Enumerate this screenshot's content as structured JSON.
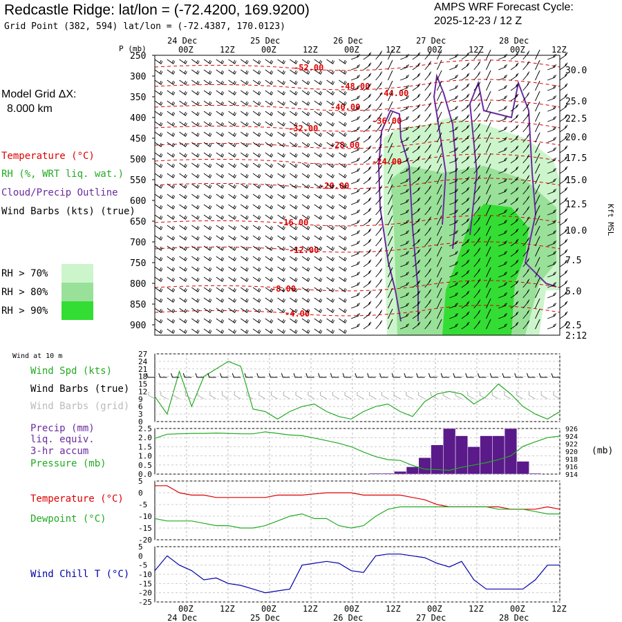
{
  "header": {
    "title": "Redcastle Ridge:  lat/lon = (-72.4200, 169.9200)",
    "subtitle": "Grid Point (382, 594) lat/lon = (-72.4387, 170.0123)",
    "cycle_line1": "AMPS WRF Forecast Cycle:",
    "cycle_line2": "2025-12-23 / 12  Z"
  },
  "left_panel": {
    "grid_label": "Model Grid ΔX:",
    "grid_value": "8.000 km",
    "legend_temperature": "Temperature (°C)",
    "legend_rh": "RH (%, WRT liq. wat.)",
    "legend_cloud": "Cloud/Precip Outline",
    "legend_barbs": "Wind Barbs (kts) (true)",
    "rh70": "RH > 70%",
    "rh80": "RH > 80%",
    "rh90": "RH > 90%",
    "wind10m": "Wind at 10 m",
    "wind_spd": "Wind Spd (kts)",
    "barbs_true": "Wind Barbs (true)",
    "barbs_grid": "Wind Barbs (grid)",
    "precip1": "Precip (mm)",
    "precip2": "liq. equiv.",
    "precip3": "3-hr accum",
    "pressure": "Pressure (mb)",
    "temperature": "Temperature (°C)",
    "dewpoint": "Dewpoint (°C)",
    "windchill": "Wind Chill T (°C)"
  },
  "colors": {
    "temperature": "#dd0000",
    "rh": "#22aa22",
    "cloud": "#6a2aa0",
    "rh70": "#ccf5cc",
    "rh80": "#99e099",
    "rh90": "#33dd33",
    "precip": "#5a1a8a",
    "windchill": "#0000aa",
    "barb_grid": "#aaaaaa"
  },
  "time_axis": {
    "top_dates": [
      "24 Dec",
      "25 Dec",
      "26 Dec",
      "27 Dec",
      "28 Dec"
    ],
    "bottom_dates": [
      "24 Dec",
      "25 Dec",
      "26 Dec",
      "27 Dec",
      "28 Dec"
    ],
    "hour_labels": [
      "00Z",
      "12Z",
      "00Z",
      "12Z",
      "00Z",
      "12Z",
      "00Z",
      "12Z",
      "00Z",
      "12Z"
    ]
  },
  "chart_data": [
    {
      "type": "heatmap",
      "panel": "upper-air cross-section",
      "ylabel": "P (mb)",
      "ylabel_right": "Kft MSL",
      "y_ticks_mb": [
        250,
        300,
        350,
        400,
        450,
        500,
        550,
        600,
        650,
        700,
        750,
        800,
        850,
        900
      ],
      "y_right_ticks": [
        "30.0",
        "25.0",
        "22.5",
        "20.0",
        "17.5",
        "15.0",
        "12.5",
        "10.0",
        "7.5",
        "5.0",
        "2.5"
      ],
      "y_right_extra": "2:12",
      "temperature_contour_labels": [
        "-52.00",
        "-48.00",
        "-44.00",
        "-40.00",
        "-36.00",
        "-32.00",
        "-28.00",
        "-24.00",
        "-20.00",
        "-16.00",
        "-12.00",
        "-8.00",
        "-4.00"
      ]
    },
    {
      "type": "line",
      "panel": "wind at 10 m",
      "series": [
        {
          "name": "Wind Spd (kts)",
          "values": [
            10,
            3,
            20,
            6,
            18,
            21,
            24,
            22,
            5,
            4,
            1,
            4,
            6,
            7,
            4,
            2,
            1,
            4,
            6,
            7,
            4,
            2,
            8,
            11,
            12,
            11,
            7,
            10,
            15,
            11,
            6,
            3,
            1,
            4
          ]
        }
      ],
      "ylim": [
        0,
        27
      ],
      "y_ticks": [
        0,
        3,
        6,
        9,
        12,
        15,
        18,
        21,
        24,
        27
      ]
    },
    {
      "type": "bar",
      "panel": "precip and pressure",
      "series": [
        {
          "name": "Precip (mm)",
          "values": [
            0,
            0,
            0,
            0,
            0,
            0,
            0,
            0,
            0,
            0,
            0,
            0,
            0,
            0,
            0,
            0,
            0,
            0,
            0.05,
            0.05,
            0.15,
            0.4,
            0.9,
            1.6,
            2.5,
            2.1,
            1.5,
            2.1,
            2.1,
            2.5,
            0.7,
            0.05,
            0,
            0
          ]
        },
        {
          "name": "Pressure (mb)",
          "values": [
            923.4,
            924.5,
            924.6,
            924.7,
            924.7,
            924.8,
            924.7,
            924.6,
            924.6,
            925.1,
            924.7,
            924.3,
            924.1,
            923.5,
            922.8,
            922.1,
            921.2,
            919.8,
            918.6,
            917.8,
            917.6,
            916.3,
            915.3,
            915.2,
            915.0,
            915.8,
            916.4,
            917.0,
            917.8,
            918.8,
            921.3,
            922.5,
            923.6,
            924.0
          ]
        }
      ],
      "ylim": [
        0,
        2.5
      ],
      "y_ticks": [
        0.0,
        0.5,
        1.0,
        1.5,
        2.0,
        2.5
      ],
      "y_right_ticks": [
        914,
        916,
        918,
        920,
        922,
        924,
        926
      ],
      "y_right_unit": "(mb)"
    },
    {
      "type": "line",
      "panel": "temperature and dewpoint",
      "series": [
        {
          "name": "Temperature (°C)",
          "values": [
            3,
            3,
            0,
            -1,
            -1,
            -2,
            -2,
            -2,
            -2,
            -2,
            -1,
            -1,
            -1,
            -0.5,
            0,
            0,
            0,
            -1,
            -1,
            -1,
            -1,
            -2,
            -3,
            -5,
            -6,
            -6,
            -6,
            -6,
            -6,
            -7,
            -7,
            -7,
            -6,
            -7
          ]
        },
        {
          "name": "Dewpoint (°C)",
          "values": [
            -11,
            -12,
            -12,
            -12,
            -13,
            -14,
            -14,
            -15,
            -15,
            -14,
            -12,
            -10,
            -9,
            -11,
            -11,
            -14,
            -15,
            -14,
            -10,
            -7,
            -6,
            -6,
            -6,
            -6,
            -6,
            -6,
            -6,
            -6,
            -7,
            -7,
            -7,
            -8,
            -9,
            -9
          ]
        }
      ],
      "ylim": [
        -20,
        5
      ],
      "y_ticks": [
        -20,
        -15,
        -10,
        -5,
        0,
        5
      ]
    },
    {
      "type": "line",
      "panel": "wind chill",
      "series": [
        {
          "name": "Wind Chill T (°C)",
          "values": [
            -8,
            0,
            -5,
            -8,
            -13,
            -12,
            -15,
            -16,
            -18,
            -20,
            -19,
            -18,
            -5,
            -4,
            -3,
            -4,
            -8,
            -9,
            0,
            1,
            1,
            0,
            -1,
            -4,
            -6,
            -3,
            -13,
            -18,
            -18,
            -18,
            -18,
            -13,
            -5,
            -5
          ]
        }
      ],
      "ylim": [
        -25,
        5
      ],
      "y_ticks": [
        -25,
        -20,
        -15,
        -10,
        -5,
        0,
        5
      ]
    }
  ]
}
